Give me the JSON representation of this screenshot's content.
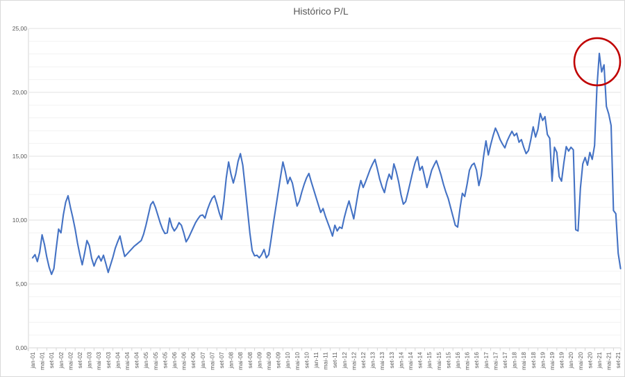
{
  "colors": {
    "line": "#4472C4",
    "annotation_circle": "#C00000",
    "title_text": "#595959",
    "tick_text": "#595959",
    "grid_minor": "#F2F2F2",
    "grid_major": "#E2E2E2",
    "axis_line": "#D5D5D5"
  },
  "chart_data": {
    "type": "line",
    "title": "Histórico P/L",
    "x_start_month": "jan-01",
    "x_end_month": "out-21",
    "frequency": "monthly",
    "ylim": [
      0,
      25
    ],
    "y_minor_grid_step": 1,
    "y_major_grid_step": 5,
    "grid": "horizontal",
    "legend_position": "none",
    "y_ticks": [
      {
        "label": "0,00",
        "value": 0
      },
      {
        "label": "5,00",
        "value": 5
      },
      {
        "label": "10,00",
        "value": 10
      },
      {
        "label": "15,00",
        "value": 15
      },
      {
        "label": "20,00",
        "value": 20
      },
      {
        "label": "25,00",
        "value": 25
      }
    ],
    "x_tick_labels": [
      "jan-01",
      "mai-01",
      "set-01",
      "jan-02",
      "mai-02",
      "set-02",
      "jan-03",
      "mai-03",
      "set-03",
      "jan-04",
      "mai-04",
      "set-04",
      "jan-05",
      "mai-05",
      "set-05",
      "jan-06",
      "mai-06",
      "set-06",
      "jan-07",
      "mai-07",
      "set-07",
      "jan-08",
      "mai-08",
      "set-08",
      "jan-09",
      "mai-09",
      "set-09",
      "jan-10",
      "mai-10",
      "set-10",
      "jan-11",
      "mai-11",
      "set-11",
      "jan-12",
      "mai-12",
      "set-12",
      "jan-13",
      "mai-13",
      "set-13",
      "jan-14",
      "mai-14",
      "set-14",
      "jan-15",
      "mai-15",
      "set-15",
      "jan-16",
      "mai-16",
      "set-16",
      "jan-17",
      "mai-17",
      "set-17",
      "jan-18",
      "mai-18",
      "set-18",
      "jan-19",
      "mai-19",
      "set-19",
      "jan-20",
      "mai-20",
      "set-20",
      "jan-21",
      "mai-21",
      "set-21"
    ],
    "series": [
      {
        "name": "P/L",
        "color": "#4472C4",
        "values": [
          7.05,
          7.3,
          6.75,
          7.5,
          8.85,
          8.1,
          7.1,
          6.3,
          5.75,
          6.2,
          7.8,
          9.3,
          9.0,
          10.4,
          11.4,
          11.9,
          11.0,
          10.2,
          9.3,
          8.2,
          7.3,
          6.5,
          7.4,
          8.4,
          8.0,
          7.0,
          6.4,
          6.9,
          7.2,
          6.8,
          7.25,
          6.6,
          5.9,
          6.5,
          7.1,
          7.8,
          8.3,
          8.75,
          7.9,
          7.15,
          7.35,
          7.55,
          7.75,
          7.95,
          8.1,
          8.25,
          8.4,
          8.9,
          9.6,
          10.4,
          11.2,
          11.45,
          11.0,
          10.4,
          9.8,
          9.3,
          8.95,
          9.0,
          10.15,
          9.5,
          9.15,
          9.4,
          9.8,
          9.6,
          9.0,
          8.3,
          8.6,
          9.0,
          9.4,
          9.8,
          10.1,
          10.35,
          10.4,
          10.15,
          10.8,
          11.3,
          11.7,
          11.9,
          11.3,
          10.6,
          10.05,
          11.5,
          13.3,
          14.55,
          13.6,
          12.9,
          13.6,
          14.6,
          15.2,
          14.3,
          12.6,
          10.8,
          9.0,
          7.6,
          7.2,
          7.25,
          7.05,
          7.3,
          7.7,
          7.05,
          7.3,
          8.5,
          9.8,
          11.0,
          12.2,
          13.4,
          14.55,
          13.8,
          12.85,
          13.35,
          12.9,
          12.0,
          11.1,
          11.5,
          12.2,
          12.8,
          13.3,
          13.65,
          13.0,
          12.4,
          11.8,
          11.2,
          10.6,
          10.9,
          10.3,
          9.8,
          9.3,
          8.75,
          9.6,
          9.15,
          9.45,
          9.35,
          10.2,
          10.9,
          11.5,
          10.8,
          10.1,
          11.2,
          12.3,
          13.1,
          12.55,
          13.0,
          13.5,
          14.0,
          14.4,
          14.75,
          14.0,
          13.2,
          12.6,
          12.15,
          13.0,
          13.6,
          13.2,
          14.4,
          13.8,
          13.0,
          12.0,
          11.25,
          11.45,
          12.2,
          13.0,
          13.8,
          14.5,
          14.95,
          13.9,
          14.2,
          13.4,
          12.55,
          13.2,
          13.9,
          14.3,
          14.65,
          14.1,
          13.5,
          12.8,
          12.2,
          11.7,
          11.0,
          10.3,
          9.6,
          9.45,
          10.9,
          12.1,
          11.85,
          12.8,
          13.9,
          14.3,
          14.45,
          13.9,
          12.7,
          13.5,
          15.0,
          16.2,
          15.1,
          15.9,
          16.6,
          17.2,
          16.8,
          16.3,
          15.95,
          15.65,
          16.2,
          16.6,
          16.95,
          16.6,
          16.8,
          16.1,
          16.3,
          15.7,
          15.2,
          15.45,
          16.3,
          17.3,
          16.5,
          17.1,
          18.35,
          17.8,
          18.1,
          16.7,
          16.4,
          13.05,
          15.7,
          15.3,
          13.4,
          13.05,
          14.5,
          15.75,
          15.4,
          15.7,
          15.5,
          9.25,
          9.15,
          12.5,
          14.4,
          14.9,
          14.3,
          15.3,
          14.75,
          15.85,
          20.4,
          23.05,
          21.6,
          22.15,
          18.9,
          18.3,
          17.4,
          10.75,
          10.5,
          7.4,
          6.2
        ]
      }
    ],
    "annotation": {
      "shape": "ellipse",
      "meaning": "red circle highlighting the P/L peak around jan-21",
      "color": "#C00000"
    }
  }
}
